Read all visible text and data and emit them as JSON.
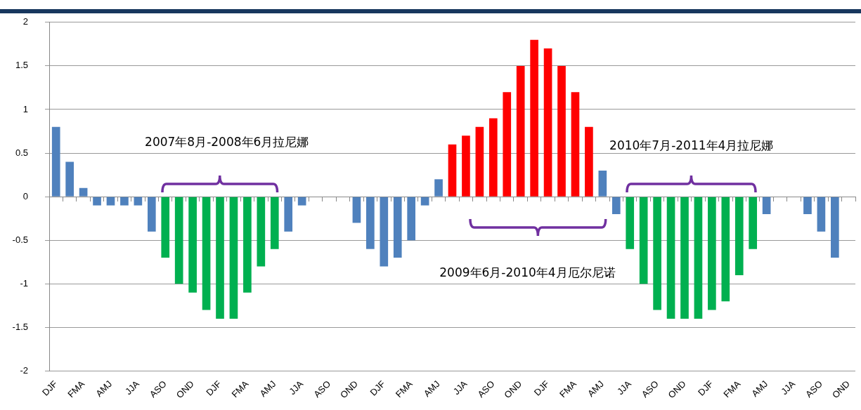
{
  "chart_data": {
    "type": "bar",
    "categories": [
      "DJF",
      null,
      "FMA",
      null,
      "AMJ",
      null,
      "JJA",
      null,
      "ASO",
      null,
      "OND",
      null,
      "DJF",
      null,
      "FMA",
      null,
      "AMJ",
      null,
      "JJA",
      null,
      "ASO",
      null,
      "OND",
      null,
      "DJF",
      null,
      "FMA",
      null,
      "AMJ",
      null,
      "JJA",
      null,
      "ASO",
      null,
      "OND",
      null,
      "DJF",
      null,
      "FMA",
      null,
      "AMJ",
      null,
      "JJA",
      null,
      "ASO",
      null,
      "OND",
      null,
      "DJF",
      null,
      "FMA",
      null,
      "AMJ",
      null,
      "JJA",
      null,
      "ASO",
      null,
      "OND"
    ],
    "values": [
      0.8,
      0.4,
      0.1,
      -0.1,
      -0.1,
      -0.1,
      -0.1,
      -0.4,
      -0.7,
      -1.0,
      -1.1,
      -1.3,
      -1.4,
      -1.4,
      -1.1,
      -0.8,
      -0.6,
      -0.4,
      -0.1,
      0,
      0,
      0,
      -0.3,
      -0.6,
      -0.8,
      -0.7,
      -0.5,
      -0.1,
      0.2,
      0.6,
      0.7,
      0.8,
      0.9,
      1.2,
      1.5,
      1.8,
      1.7,
      1.5,
      1.2,
      0.8,
      0.3,
      -0.2,
      -0.6,
      -1.0,
      -1.3,
      -1.4,
      -1.4,
      -1.4,
      -1.3,
      -1.2,
      -0.9,
      -0.6,
      -0.2,
      0,
      0,
      -0.2,
      -0.4,
      -0.7,
      null
    ],
    "colors": [
      "#4f81bd",
      "#4f81bd",
      "#4f81bd",
      "#4f81bd",
      "#4f81bd",
      "#4f81bd",
      "#4f81bd",
      "#4f81bd",
      "#00b050",
      "#00b050",
      "#00b050",
      "#00b050",
      "#00b050",
      "#00b050",
      "#00b050",
      "#00b050",
      "#00b050",
      "#4f81bd",
      "#4f81bd",
      "#4f81bd",
      "#4f81bd",
      "#4f81bd",
      "#4f81bd",
      "#4f81bd",
      "#4f81bd",
      "#4f81bd",
      "#4f81bd",
      "#4f81bd",
      "#4f81bd",
      "#ff0000",
      "#ff0000",
      "#ff0000",
      "#ff0000",
      "#ff0000",
      "#ff0000",
      "#ff0000",
      "#ff0000",
      "#ff0000",
      "#ff0000",
      "#ff0000",
      "#4f81bd",
      "#4f81bd",
      "#00b050",
      "#00b050",
      "#00b050",
      "#00b050",
      "#00b050",
      "#00b050",
      "#00b050",
      "#00b050",
      "#00b050",
      "#00b050",
      "#4f81bd",
      "#4f81bd",
      "#4f81bd",
      "#4f81bd",
      "#4f81bd",
      "#4f81bd",
      "#4f81bd"
    ],
    "ylim": [
      -2,
      2
    ],
    "yticks": [
      -2,
      -1.5,
      -1,
      -0.5,
      0,
      0.5,
      1,
      1.5,
      2
    ],
    "grid": "y",
    "legend": false,
    "annotations": [
      "2007年8月-2008年6月拉尼娜",
      "2009年6月-2010年4月厄尔尼诺",
      "2010年7月-2011年4月拉尼娜"
    ]
  }
}
